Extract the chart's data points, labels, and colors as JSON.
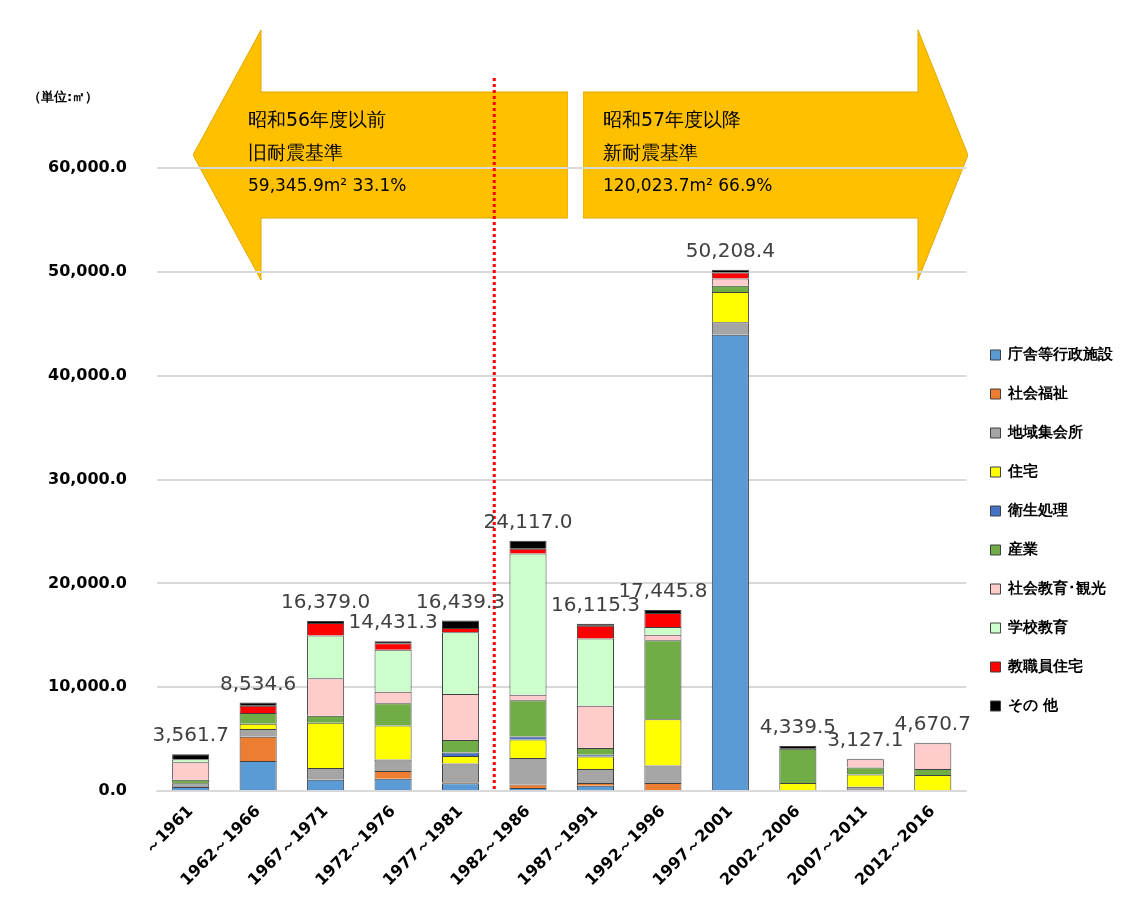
{
  "chart_data": {
    "type": "bar",
    "stacked": true,
    "ylabel": "（単位:㎡）",
    "categories": [
      "～1961",
      "1962～1966",
      "1967～1971",
      "1972～1976",
      "1977～1981",
      "1982～1986",
      "1987～1991",
      "1992～1996",
      "1997～2001",
      "2002～2006",
      "2007～2011",
      "2012～2016"
    ],
    "series": [
      {
        "name": "庁舎等行政施設",
        "color": "#5b9bd5",
        "values": [
          400,
          2900,
          1100,
          1200,
          750,
          300,
          530,
          0,
          43938.4,
          0,
          0,
          0
        ]
      },
      {
        "name": "社会福祉",
        "color": "#ed7d31",
        "values": [
          0,
          2330,
          0,
          750,
          100,
          350,
          250,
          780,
          0,
          0,
          0,
          0
        ]
      },
      {
        "name": "地域集会所",
        "color": "#a5a5a5",
        "values": [
          350,
          750,
          1130,
          1100,
          1820,
          2550,
          1350,
          1700,
          1200,
          0,
          420,
          0
        ]
      },
      {
        "name": "住宅",
        "color": "#ffff00",
        "values": [
          0,
          500,
          4350,
          3260,
          720,
          1770,
          1200,
          4430,
          2910,
          780,
          1170,
          1560
        ]
      },
      {
        "name": "衛生処理",
        "color": "#4472c4",
        "values": [
          0,
          0,
          0,
          0,
          340,
          290,
          180,
          0,
          0,
          0,
          0,
          0
        ]
      },
      {
        "name": "産業",
        "color": "#70ad47",
        "values": [
          350,
          1050,
          690,
          2160,
          1200,
          3480,
          640,
          7620,
          620,
          3300,
          680,
          570
        ]
      },
      {
        "name": "社会教育･観光",
        "color": "#ffcccc",
        "values": [
          1680,
          0,
          3600,
          1100,
          4420,
          530,
          4080,
          530,
          690,
          0,
          810,
          2490
        ]
      },
      {
        "name": "学校教育",
        "color": "#ccffcc",
        "values": [
          281.7,
          0,
          4110,
          4050,
          5959.3,
          13620,
          6465.3,
          740,
          0,
          0,
          0,
          0
        ]
      },
      {
        "name": "教職員住宅",
        "color": "#ff0000",
        "values": [
          0,
          690,
          1200,
          620,
          410,
          460,
          1240,
          1350,
          580,
          0,
          0,
          0
        ]
      },
      {
        "name": "その 他",
        "color": "#000000",
        "values": [
          500,
          314.6,
          199,
          191.3,
          720,
          767,
          180,
          295.8,
          270,
          259.5,
          47.1,
          50.7
        ]
      }
    ],
    "totals": [
      "3,561.7",
      "8,534.6",
      "16,379.0",
      "14,431.3",
      "16,439.3",
      "24,117.0",
      "16,115.3",
      "17,445.8",
      "50,208.4",
      "4,339.5",
      "3,127.1",
      "4,670.7"
    ],
    "ylim": [
      0,
      60000
    ],
    "yticks": [
      {
        "value": 0,
        "label": "0.0"
      },
      {
        "value": 10000,
        "label": "10,000.0"
      },
      {
        "value": 20000,
        "label": "20,000.0"
      },
      {
        "value": 30000,
        "label": "30,000.0"
      },
      {
        "value": 40000,
        "label": "40,000.0"
      },
      {
        "value": 50000,
        "label": "50,000.0"
      },
      {
        "value": 60000,
        "label": "60,000.0"
      }
    ],
    "grid": "y",
    "legend": "right",
    "ref_lines": [
      {
        "axis": "x",
        "value": "1982～1986",
        "color": "#ff0000",
        "line_style": "dotted"
      }
    ],
    "annotations": [
      "昭和56年度以前",
      "旧耐震基準",
      "59,345.9m²  33.1%",
      "昭和57年度以降",
      "新耐震基準",
      "120,023.7m²  66.9%"
    ]
  }
}
